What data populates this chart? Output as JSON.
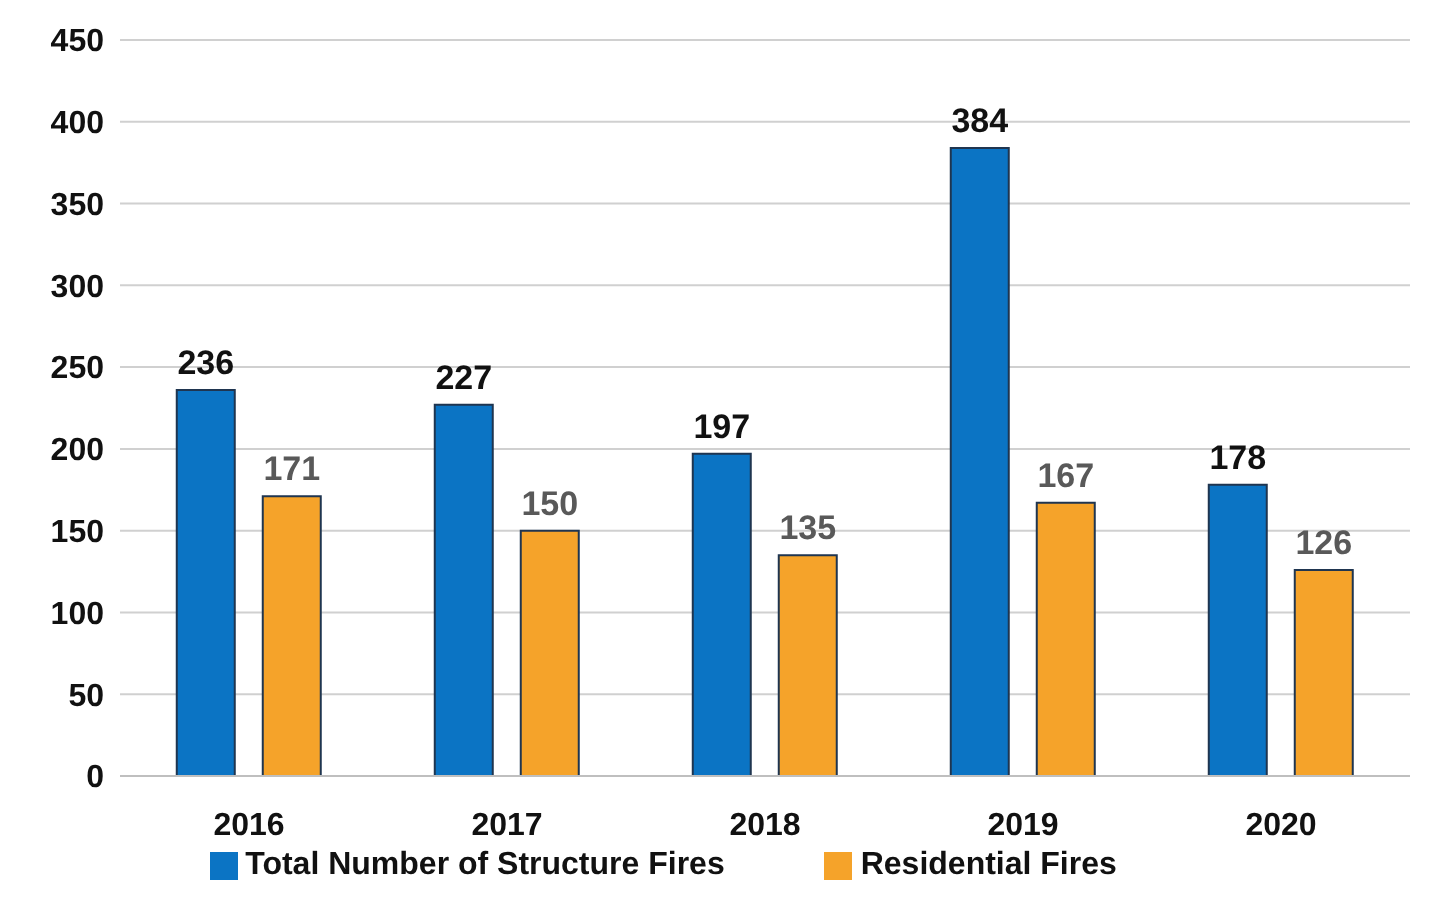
{
  "chart_data": {
    "type": "bar",
    "categories": [
      "2016",
      "2017",
      "2018",
      "2019",
      "2020"
    ],
    "series": [
      {
        "name": "Total Number of Structure Fires",
        "color": "#0b74c4",
        "values": [
          236,
          227,
          197,
          384,
          178
        ]
      },
      {
        "name": "Residential Fires",
        "color": "#f5a32a",
        "values": [
          171,
          150,
          135,
          167,
          126
        ]
      }
    ],
    "ylim": [
      0,
      450
    ],
    "yticks": [
      0,
      50,
      100,
      150,
      200,
      250,
      300,
      350,
      400,
      450
    ],
    "grid": "y",
    "legend": "bottom",
    "data_labels": true
  }
}
